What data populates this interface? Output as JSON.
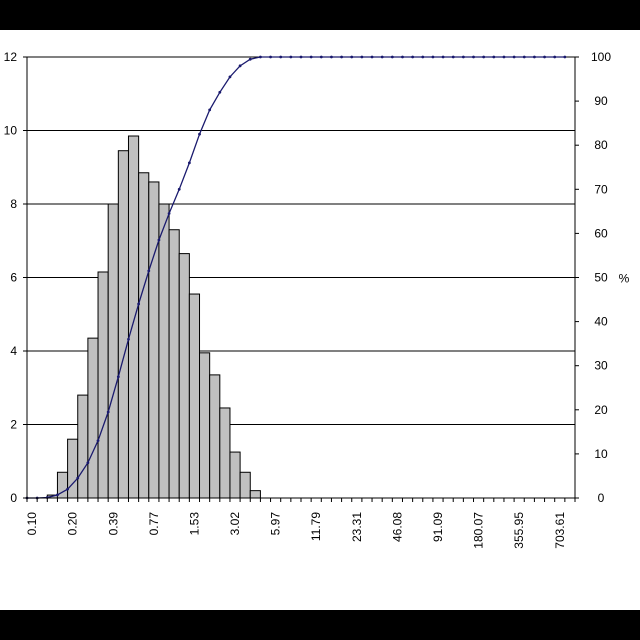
{
  "chart_data": {
    "type": "bar",
    "title": "",
    "xlabel": "",
    "ylabel": "",
    "y2label": "%",
    "ylim": [
      0,
      12
    ],
    "y2lim": [
      0,
      100
    ],
    "yticks": [
      "0",
      "2",
      "4",
      "6",
      "8",
      "10",
      "12"
    ],
    "y2ticks": [
      "0",
      "10",
      "20",
      "30",
      "40",
      "50",
      "60",
      "70",
      "80",
      "90",
      "100"
    ],
    "xtick_labels": [
      "0.10",
      "0.20",
      "0.39",
      "0.77",
      "1.53",
      "3.02",
      "5.97",
      "11.79",
      "23.31",
      "46.08",
      "91.09",
      "180.07",
      "355.95",
      "703.61"
    ],
    "grid": true,
    "legend": "none",
    "bar_color": "#c0c0c0",
    "line_color": "#1a1a6e",
    "series": [
      {
        "type": "bar",
        "axis": "left",
        "values": [
          0,
          0,
          0.08,
          0.7,
          1.6,
          2.8,
          4.35,
          6.15,
          8.0,
          9.45,
          9.85,
          8.85,
          8.6,
          8.0,
          7.3,
          6.65,
          5.55,
          3.95,
          3.35,
          2.45,
          1.25,
          0.7,
          0.2,
          0,
          0,
          0,
          0,
          0,
          0,
          0,
          0,
          0,
          0,
          0,
          0,
          0,
          0,
          0,
          0,
          0,
          0,
          0,
          0,
          0,
          0,
          0,
          0,
          0,
          0,
          0,
          0,
          0,
          0,
          0
        ]
      },
      {
        "type": "line",
        "axis": "right",
        "values": [
          0,
          0,
          0.1,
          0.7,
          2.0,
          4.5,
          8.0,
          13.0,
          19.5,
          27.5,
          36.0,
          44.0,
          51.5,
          58.5,
          64.5,
          70.0,
          76.0,
          82.5,
          88.0,
          92.0,
          95.5,
          98.0,
          99.5,
          100,
          100,
          100,
          100,
          100,
          100,
          100,
          100,
          100,
          100,
          100,
          100,
          100,
          100,
          100,
          100,
          100,
          100,
          100,
          100,
          100,
          100,
          100,
          100,
          100,
          100,
          100,
          100,
          100,
          100,
          100
        ]
      }
    ]
  }
}
